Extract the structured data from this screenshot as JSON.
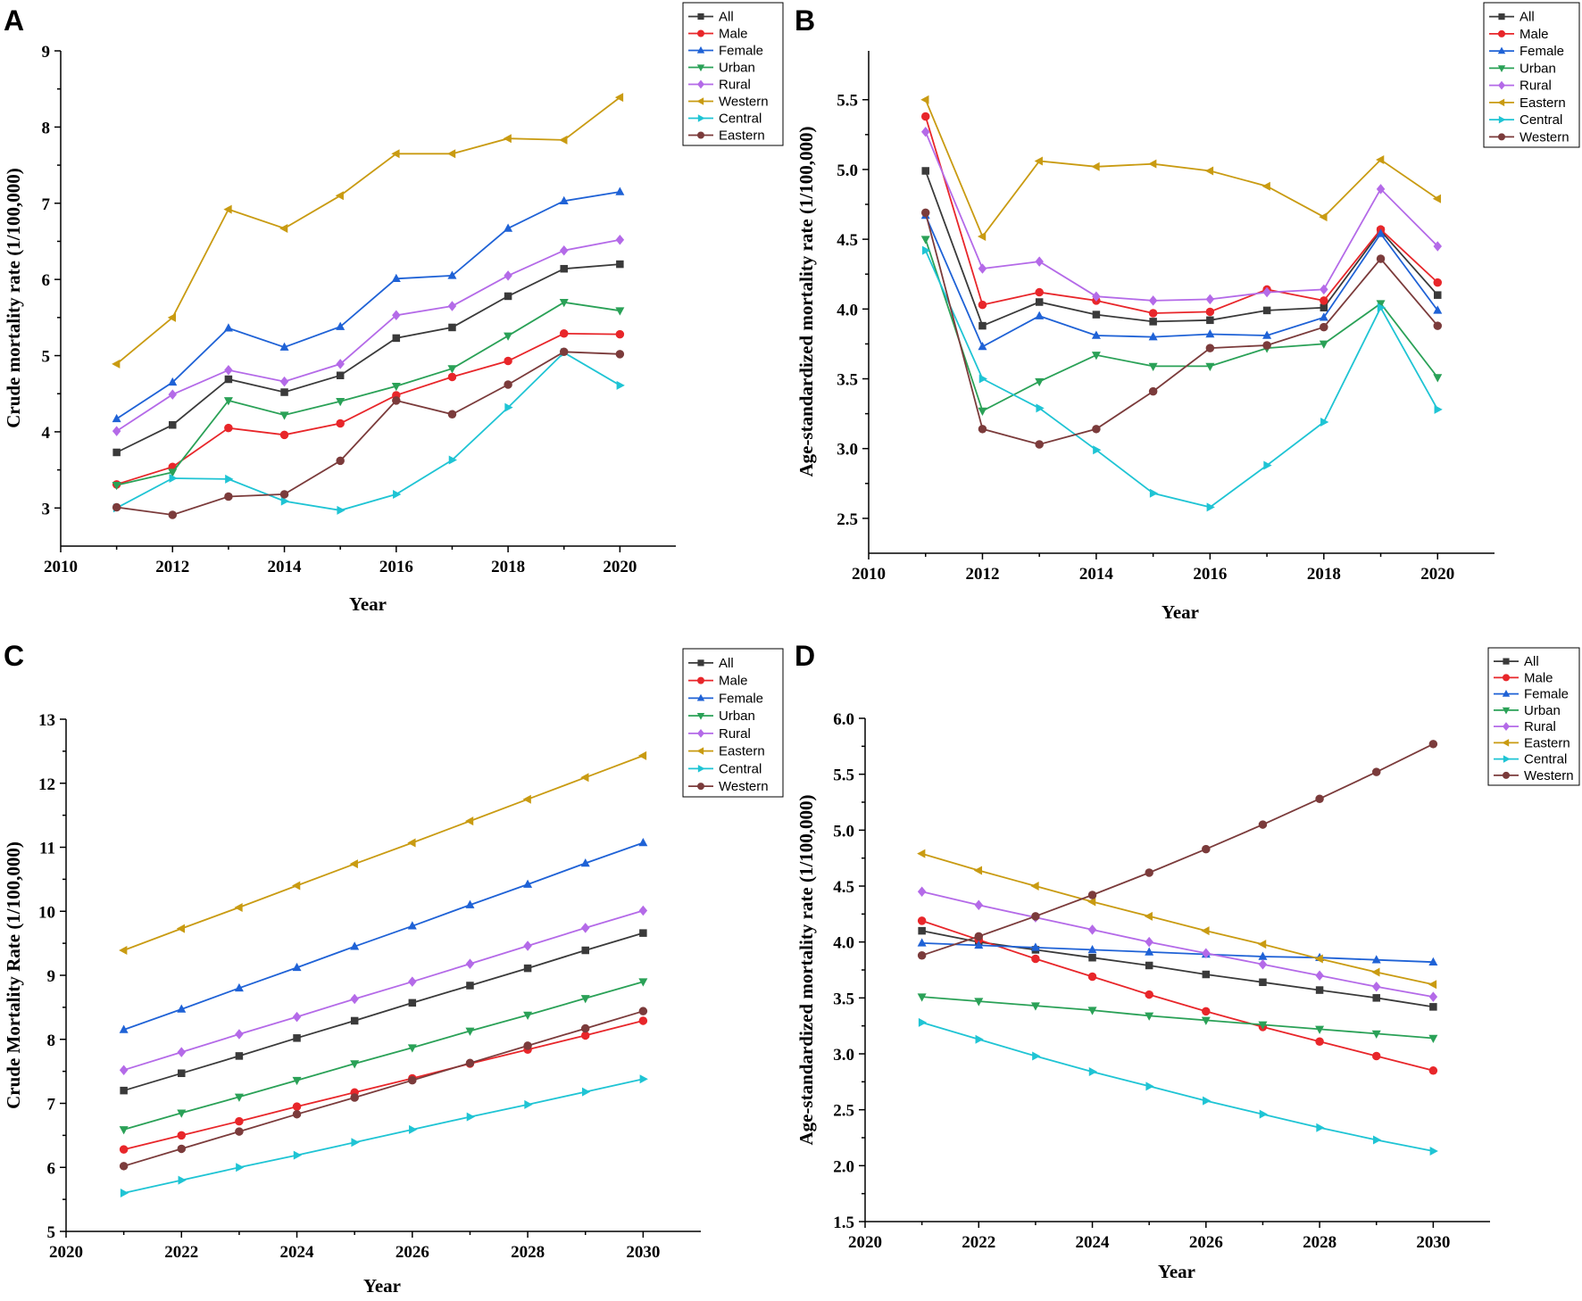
{
  "chart_data": [
    {
      "type": "line",
      "panel": "A",
      "xlabel": "Year",
      "ylabel": "Crude mortality rate (1/100,000)",
      "xlim": [
        2010,
        2021
      ],
      "ylim": [
        2.5,
        9
      ],
      "xticks": [
        2010,
        2012,
        2014,
        2016,
        2018,
        2020
      ],
      "yticks": [
        3,
        4,
        5,
        6,
        7,
        8,
        9
      ],
      "x": [
        2011,
        2012,
        2013,
        2014,
        2015,
        2016,
        2017,
        2018,
        2019,
        2020
      ],
      "legend_position": "top-right",
      "series": [
        {
          "name": "All",
          "color": "#3a3a3a",
          "marker": "square",
          "values": [
            3.73,
            4.09,
            4.69,
            4.52,
            4.74,
            5.23,
            5.37,
            5.78,
            6.14,
            6.2
          ]
        },
        {
          "name": "Male",
          "color": "#e8262a",
          "marker": "circle",
          "values": [
            3.31,
            3.54,
            4.05,
            3.96,
            4.11,
            4.48,
            4.72,
            4.93,
            5.29,
            5.28
          ]
        },
        {
          "name": "Female",
          "color": "#1f62d6",
          "marker": "triangle-up",
          "values": [
            4.17,
            4.65,
            5.36,
            5.11,
            5.38,
            6.01,
            6.05,
            6.67,
            7.03,
            7.15
          ]
        },
        {
          "name": "Urban",
          "color": "#2aa157",
          "marker": "triangle-down",
          "values": [
            3.3,
            3.47,
            4.41,
            4.22,
            4.4,
            4.6,
            4.83,
            5.26,
            5.7,
            5.59
          ]
        },
        {
          "name": "Rural",
          "color": "#b46ae8",
          "marker": "diamond",
          "values": [
            4.01,
            4.49,
            4.81,
            4.66,
            4.89,
            5.53,
            5.65,
            6.05,
            6.38,
            6.52
          ]
        },
        {
          "name": "Western",
          "color": "#c99b12",
          "marker": "triangle-left",
          "values": [
            4.89,
            5.5,
            6.92,
            6.67,
            7.1,
            7.65,
            7.65,
            7.85,
            7.83,
            8.39
          ]
        },
        {
          "name": "Central",
          "color": "#1fc4d4",
          "marker": "triangle-right",
          "values": [
            3.0,
            3.39,
            3.38,
            3.09,
            2.97,
            3.18,
            3.63,
            4.32,
            5.04,
            4.61
          ]
        },
        {
          "name": "Eastern",
          "color": "#7b3b3b",
          "marker": "circle",
          "values": [
            3.01,
            2.91,
            3.15,
            3.18,
            3.62,
            4.41,
            4.23,
            4.62,
            5.05,
            5.02
          ]
        }
      ]
    },
    {
      "type": "line",
      "panel": "B",
      "xlabel": "Year",
      "ylabel": "Age-standardized mortality rate (1/100,000)",
      "xlim": [
        2010,
        2021
      ],
      "ylim": [
        2.25,
        5.85
      ],
      "xticks": [
        2010,
        2012,
        2014,
        2016,
        2018,
        2020
      ],
      "yticks": [
        "2.5",
        "3.0",
        "3.5",
        "4.0",
        "4.5",
        "5.0",
        "5.5"
      ],
      "x": [
        2011,
        2012,
        2013,
        2014,
        2015,
        2016,
        2017,
        2018,
        2019,
        2020
      ],
      "legend_position": "top-right",
      "series": [
        {
          "name": "All",
          "color": "#3a3a3a",
          "marker": "square",
          "values": [
            4.99,
            3.88,
            4.05,
            3.96,
            3.91,
            3.92,
            3.99,
            4.01,
            4.56,
            4.1
          ]
        },
        {
          "name": "Male",
          "color": "#e8262a",
          "marker": "circle",
          "values": [
            5.38,
            4.03,
            4.12,
            4.06,
            3.97,
            3.98,
            4.14,
            4.06,
            4.57,
            4.19
          ]
        },
        {
          "name": "Female",
          "color": "#1f62d6",
          "marker": "triangle-up",
          "values": [
            4.67,
            3.73,
            3.95,
            3.81,
            3.8,
            3.82,
            3.81,
            3.94,
            4.54,
            3.99
          ]
        },
        {
          "name": "Urban",
          "color": "#2aa157",
          "marker": "triangle-down",
          "values": [
            4.5,
            3.27,
            3.48,
            3.67,
            3.59,
            3.59,
            3.72,
            3.75,
            4.04,
            3.51
          ]
        },
        {
          "name": "Rural",
          "color": "#b46ae8",
          "marker": "diamond",
          "values": [
            5.27,
            4.29,
            4.34,
            4.09,
            4.06,
            4.07,
            4.12,
            4.14,
            4.86,
            4.45
          ]
        },
        {
          "name": "Eastern",
          "color": "#c99b12",
          "marker": "triangle-left",
          "values": [
            5.5,
            4.52,
            5.06,
            5.02,
            5.04,
            4.99,
            4.88,
            4.66,
            5.07,
            4.79
          ]
        },
        {
          "name": "Central",
          "color": "#1fc4d4",
          "marker": "triangle-right",
          "values": [
            4.42,
            3.5,
            3.29,
            2.99,
            2.68,
            2.58,
            2.88,
            3.19,
            4.01,
            3.28
          ]
        },
        {
          "name": "Western",
          "color": "#7b3b3b",
          "marker": "circle",
          "values": [
            4.69,
            3.14,
            3.03,
            3.14,
            3.41,
            3.72,
            3.74,
            3.87,
            4.36,
            3.88
          ]
        }
      ]
    },
    {
      "type": "line",
      "panel": "C",
      "xlabel": "Year",
      "ylabel": "Crude Mortality Rate (1/100,000)",
      "xlim": [
        2020,
        2031
      ],
      "ylim": [
        5,
        13
      ],
      "xticks": [
        2020,
        2022,
        2024,
        2026,
        2028,
        2030
      ],
      "yticks": [
        5,
        6,
        7,
        8,
        9,
        10,
        11,
        12,
        13
      ],
      "x": [
        2021,
        2022,
        2023,
        2024,
        2025,
        2026,
        2027,
        2028,
        2029,
        2030
      ],
      "legend_position": "top-right",
      "series": [
        {
          "name": "All",
          "color": "#3a3a3a",
          "marker": "square",
          "values": [
            7.2,
            7.47,
            7.74,
            8.02,
            8.29,
            8.57,
            8.84,
            9.11,
            9.39,
            9.66
          ]
        },
        {
          "name": "Male",
          "color": "#e8262a",
          "marker": "circle",
          "values": [
            6.28,
            6.5,
            6.72,
            6.95,
            7.17,
            7.39,
            7.62,
            7.84,
            8.06,
            8.29
          ]
        },
        {
          "name": "Female",
          "color": "#1f62d6",
          "marker": "triangle-up",
          "values": [
            8.15,
            8.47,
            8.8,
            9.12,
            9.45,
            9.77,
            10.1,
            10.42,
            10.75,
            11.07
          ]
        },
        {
          "name": "Urban",
          "color": "#2aa157",
          "marker": "triangle-down",
          "values": [
            6.59,
            6.85,
            7.1,
            7.36,
            7.62,
            7.87,
            8.13,
            8.38,
            8.64,
            8.9
          ]
        },
        {
          "name": "Rural",
          "color": "#b46ae8",
          "marker": "diamond",
          "values": [
            7.52,
            7.8,
            8.08,
            8.35,
            8.63,
            8.9,
            9.18,
            9.46,
            9.74,
            10.01
          ]
        },
        {
          "name": "Eastern",
          "color": "#c99b12",
          "marker": "triangle-left",
          "values": [
            9.39,
            9.73,
            10.06,
            10.4,
            10.74,
            11.07,
            11.41,
            11.75,
            12.09,
            12.43
          ]
        },
        {
          "name": "Central",
          "color": "#1fc4d4",
          "marker": "triangle-right",
          "values": [
            5.6,
            5.8,
            6.0,
            6.19,
            6.39,
            6.59,
            6.79,
            6.98,
            7.18,
            7.38
          ]
        },
        {
          "name": "Western",
          "color": "#7b3b3b",
          "marker": "circle",
          "values": [
            6.02,
            6.29,
            6.56,
            6.83,
            7.09,
            7.36,
            7.63,
            7.9,
            8.17,
            8.44
          ]
        }
      ]
    },
    {
      "type": "line",
      "panel": "D",
      "xlabel": "Year",
      "ylabel": "Age-standardized mortality rate (1/100,000)",
      "xlim": [
        2020,
        2031
      ],
      "ylim": [
        1.5,
        6.0
      ],
      "xticks": [
        2020,
        2022,
        2024,
        2026,
        2028,
        2030
      ],
      "yticks": [
        "1.5",
        "2.0",
        "2.5",
        "3.0",
        "3.5",
        "4.0",
        "4.5",
        "5.0",
        "5.5",
        "6.0"
      ],
      "x": [
        2021,
        2022,
        2023,
        2024,
        2025,
        2026,
        2027,
        2028,
        2029,
        2030
      ],
      "legend_position": "top-right",
      "series": [
        {
          "name": "All",
          "color": "#3a3a3a",
          "marker": "square",
          "values": [
            4.1,
            4.0,
            3.93,
            3.86,
            3.79,
            3.71,
            3.64,
            3.57,
            3.5,
            3.42
          ]
        },
        {
          "name": "Male",
          "color": "#e8262a",
          "marker": "circle",
          "values": [
            4.19,
            4.02,
            3.85,
            3.69,
            3.53,
            3.38,
            3.24,
            3.11,
            2.98,
            2.85
          ]
        },
        {
          "name": "Female",
          "color": "#1f62d6",
          "marker": "triangle-up",
          "values": [
            3.99,
            3.97,
            3.95,
            3.93,
            3.91,
            3.89,
            3.87,
            3.86,
            3.84,
            3.82
          ]
        },
        {
          "name": "Urban",
          "color": "#2aa157",
          "marker": "triangle-down",
          "values": [
            3.51,
            3.47,
            3.43,
            3.39,
            3.34,
            3.3,
            3.26,
            3.22,
            3.18,
            3.14
          ]
        },
        {
          "name": "Rural",
          "color": "#b46ae8",
          "marker": "diamond",
          "values": [
            4.45,
            4.33,
            4.22,
            4.11,
            4.0,
            3.9,
            3.8,
            3.7,
            3.6,
            3.51
          ]
        },
        {
          "name": "Eastern",
          "color": "#c99b12",
          "marker": "triangle-left",
          "values": [
            4.79,
            4.64,
            4.5,
            4.36,
            4.23,
            4.1,
            3.98,
            3.85,
            3.73,
            3.62
          ]
        },
        {
          "name": "Central",
          "color": "#1fc4d4",
          "marker": "triangle-right",
          "values": [
            3.28,
            3.13,
            2.98,
            2.84,
            2.71,
            2.58,
            2.46,
            2.34,
            2.23,
            2.13
          ]
        },
        {
          "name": "Western",
          "color": "#7b3b3b",
          "marker": "circle",
          "values": [
            3.88,
            4.05,
            4.23,
            4.42,
            4.62,
            4.83,
            5.05,
            5.28,
            5.52,
            5.77
          ]
        }
      ]
    }
  ]
}
